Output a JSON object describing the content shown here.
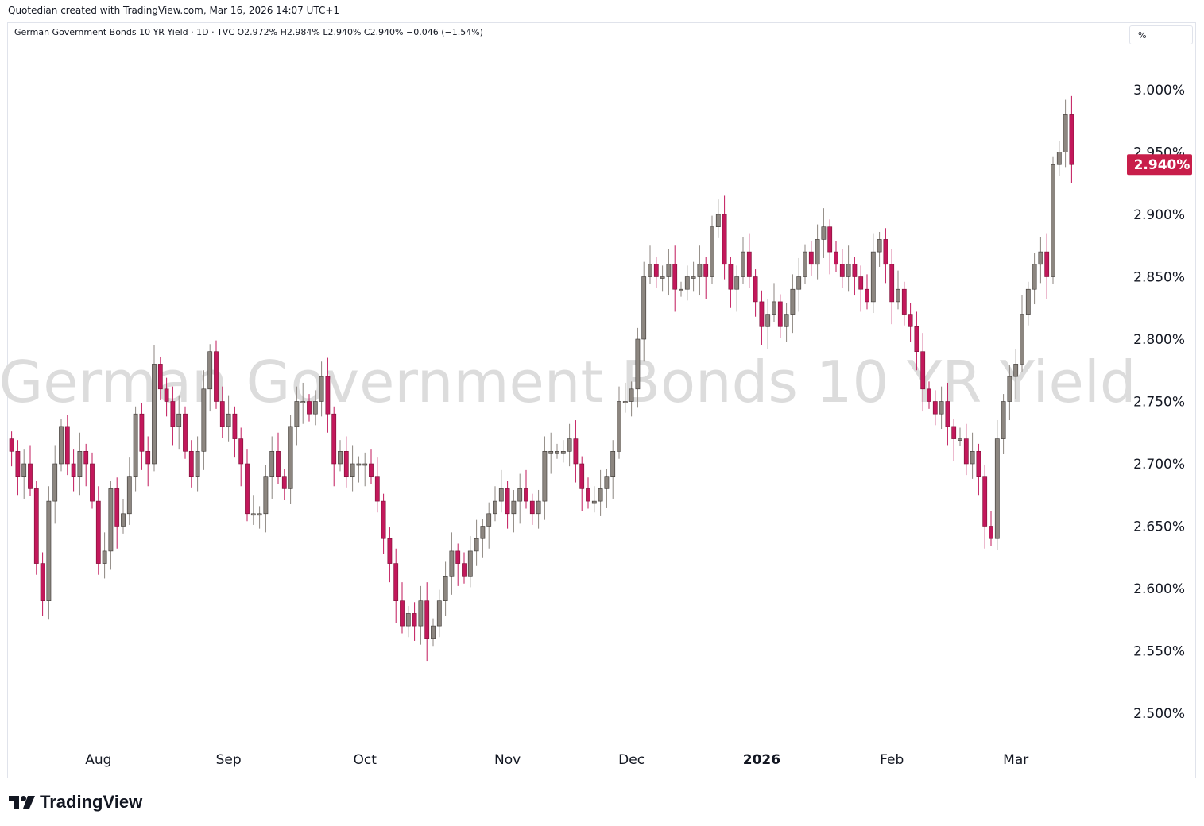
{
  "caption": "Quotedian created with TradingView.com, Mar 16, 2026 14:07 UTC+1",
  "legend": "German Government Bonds 10 YR Yield · 1D · TVC  O2.972%  H2.984%  L2.940%  C2.940%  −0.046 (−1.54%)",
  "unit_selector": "%",
  "watermark": "German Government Bonds 10 YR Yield",
  "brand": "TradingView",
  "colors": {
    "up": "#8c8680",
    "down": "#c2185b",
    "last_label": "#c81e4a"
  },
  "chart_data": {
    "type": "candlestick",
    "title": "German Government Bonds 10 YR Yield",
    "interval": "1D",
    "source": "TVC",
    "unit": "%",
    "ylim": [
      2.46,
      3.05
    ],
    "yticks": [
      "3.000%",
      "2.950%",
      "2.900%",
      "2.850%",
      "2.800%",
      "2.750%",
      "2.700%",
      "2.650%",
      "2.600%",
      "2.550%",
      "2.500%"
    ],
    "ytick_values": [
      3.0,
      2.95,
      2.9,
      2.85,
      2.8,
      2.75,
      2.7,
      2.65,
      2.6,
      2.55,
      2.5
    ],
    "xticks": [
      {
        "label": "Aug",
        "index": 14,
        "bold": false
      },
      {
        "label": "Sep",
        "index": 35,
        "bold": false
      },
      {
        "label": "Oct",
        "index": 57,
        "bold": false
      },
      {
        "label": "Nov",
        "index": 80,
        "bold": false
      },
      {
        "label": "Dec",
        "index": 100,
        "bold": false
      },
      {
        "label": "2026",
        "index": 121,
        "bold": true
      },
      {
        "label": "Feb",
        "index": 142,
        "bold": false
      },
      {
        "label": "Mar",
        "index": 162,
        "bold": false
      }
    ],
    "last_value_label": "2.940%",
    "last_value": 2.94,
    "grid": false,
    "closes": [
      2.71,
      2.69,
      2.7,
      2.68,
      2.62,
      2.59,
      2.67,
      2.7,
      2.73,
      2.7,
      2.69,
      2.71,
      2.7,
      2.67,
      2.62,
      2.63,
      2.68,
      2.65,
      2.66,
      2.69,
      2.74,
      2.71,
      2.7,
      2.78,
      2.76,
      2.75,
      2.73,
      2.74,
      2.71,
      2.69,
      2.71,
      2.76,
      2.79,
      2.75,
      2.73,
      2.74,
      2.72,
      2.7,
      2.66,
      2.66,
      2.66,
      2.69,
      2.71,
      2.69,
      2.68,
      2.73,
      2.75,
      2.75,
      2.74,
      2.75,
      2.77,
      2.74,
      2.7,
      2.71,
      2.69,
      2.7,
      2.7,
      2.7,
      2.69,
      2.67,
      2.64,
      2.62,
      2.59,
      2.57,
      2.58,
      2.57,
      2.59,
      2.56,
      2.57,
      2.59,
      2.61,
      2.63,
      2.62,
      2.61,
      2.63,
      2.64,
      2.65,
      2.66,
      2.67,
      2.68,
      2.66,
      2.67,
      2.68,
      2.67,
      2.66,
      2.67,
      2.71,
      2.71,
      2.71,
      2.71,
      2.72,
      2.7,
      2.68,
      2.67,
      2.67,
      2.68,
      2.69,
      2.71,
      2.75,
      2.75,
      2.76,
      2.8,
      2.85,
      2.86,
      2.85,
      2.85,
      2.86,
      2.84,
      2.84,
      2.85,
      2.85,
      2.86,
      2.85,
      2.89,
      2.9,
      2.86,
      2.84,
      2.85,
      2.87,
      2.85,
      2.83,
      2.81,
      2.82,
      2.83,
      2.81,
      2.82,
      2.84,
      2.85,
      2.87,
      2.86,
      2.88,
      2.89,
      2.87,
      2.86,
      2.85,
      2.86,
      2.85,
      2.84,
      2.83,
      2.87,
      2.88,
      2.86,
      2.83,
      2.84,
      2.82,
      2.81,
      2.79,
      2.76,
      2.75,
      2.74,
      2.75,
      2.73,
      2.72,
      2.72,
      2.7,
      2.71,
      2.69,
      2.65,
      2.64,
      2.72,
      2.75,
      2.77,
      2.78,
      2.82,
      2.84,
      2.86,
      2.87,
      2.85,
      2.94,
      2.95,
      2.98,
      2.94
    ]
  }
}
